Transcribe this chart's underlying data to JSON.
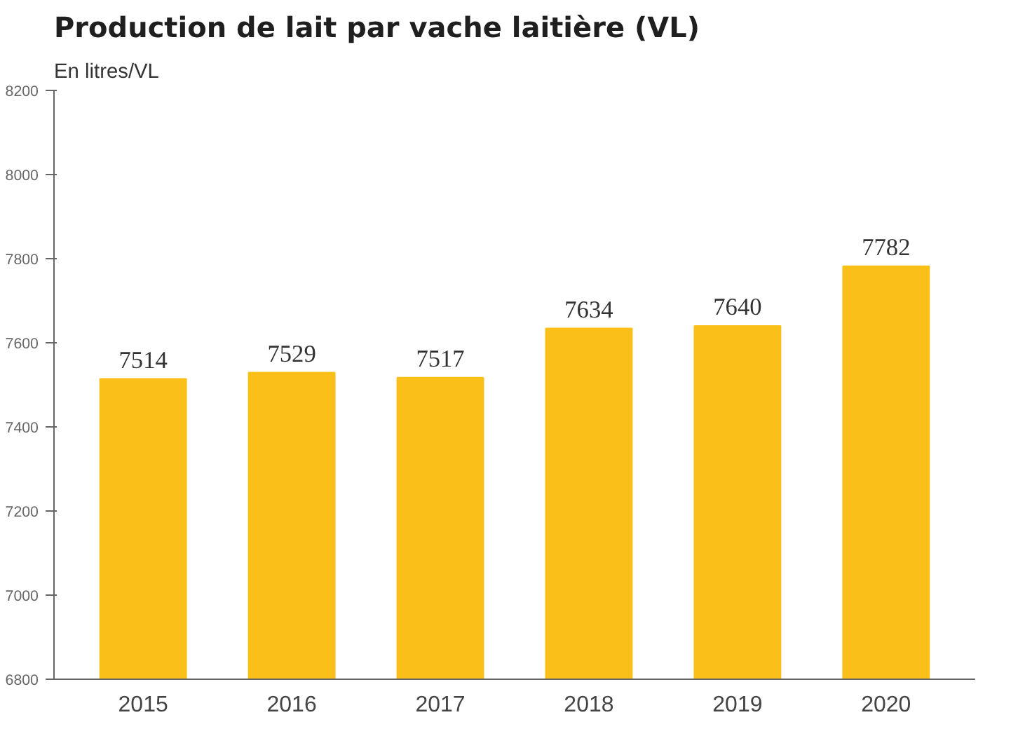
{
  "chart_data": {
    "type": "bar",
    "title": "Production de lait par vache laitière (VL)",
    "subtitle": "En litres/VL",
    "categories": [
      "2015",
      "2016",
      "2017",
      "2018",
      "2019",
      "2020"
    ],
    "values": [
      7514,
      7529,
      7517,
      7634,
      7640,
      7782
    ],
    "color": "#fbbf1a",
    "ylim": [
      6800,
      8200
    ],
    "yticks": [
      6800,
      7000,
      7200,
      7400,
      7600,
      7800,
      8000,
      8200
    ],
    "grid": false,
    "data_labels": true
  }
}
